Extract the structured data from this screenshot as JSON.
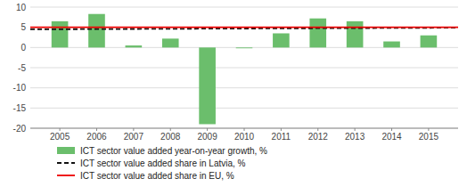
{
  "chart_data": {
    "type": "bar",
    "x": [
      2005,
      2006,
      2007,
      2008,
      2009,
      2010,
      2011,
      2012,
      2013,
      2014,
      2015
    ],
    "xlim": [
      2004.2,
      2015.8
    ],
    "xticks": [
      2005,
      2006,
      2007,
      2008,
      2009,
      2010,
      2011,
      2012,
      2013,
      2014,
      2015
    ],
    "ylim": [
      -20,
      10
    ],
    "yticks": [
      -20,
      -15,
      -10,
      -5,
      0,
      5,
      10
    ],
    "grid": true,
    "legend": "bottom",
    "series": [
      {
        "name": "ICT sector value added year-on-year growth, %",
        "type": "bar",
        "color": "#6bbe6c",
        "values": [
          6.5,
          8.3,
          0.5,
          2.2,
          -19.0,
          -0.2,
          3.5,
          7.2,
          6.5,
          1.5,
          3.0
        ]
      },
      {
        "name": "ICT sector value added share in Latvia, %",
        "type": "line",
        "color": "#111111",
        "line_style": "dashed",
        "x": [
          2004.2,
          2015.8
        ],
        "values": [
          4.5,
          4.9
        ]
      },
      {
        "name": "ICT sector value added share in EU, %",
        "type": "line",
        "color": "#ee0000",
        "line_style": "solid",
        "x": [
          2004.2,
          2015.8
        ],
        "values": [
          5.0,
          5.0
        ]
      }
    ]
  }
}
